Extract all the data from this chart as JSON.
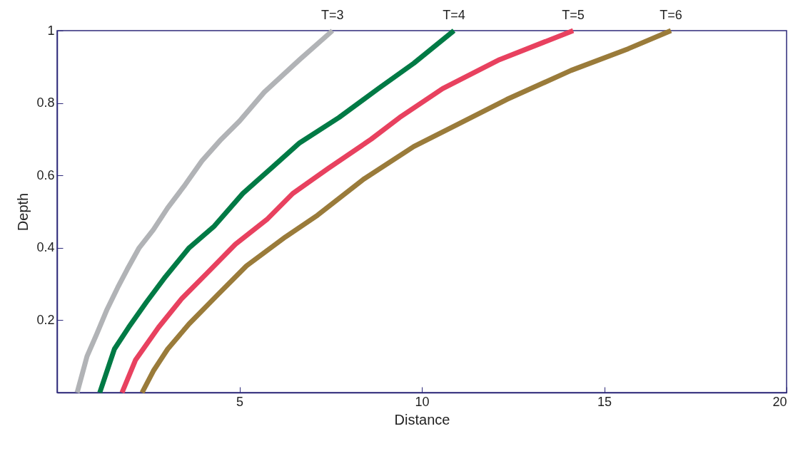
{
  "chart_data": {
    "type": "line",
    "xlabel": "Distance",
    "ylabel": "Depth",
    "xlim": [
      0,
      20
    ],
    "xticks": [
      5,
      10,
      15,
      20
    ],
    "ylim": [
      0,
      1
    ],
    "yticks": [
      0.2,
      0.4,
      0.6,
      0.8,
      {
        "value": 1,
        "label": "1"
      }
    ],
    "grid": false,
    "legend": false,
    "marker": "none",
    "line_style": "solid",
    "series": [
      {
        "name": "T=3",
        "color": "#b1b3b6",
        "x": [
          0.55,
          0.82,
          1.08,
          1.37,
          1.66,
          1.92,
          2.25,
          2.64,
          3.03,
          3.48,
          3.97,
          4.5,
          5.0,
          5.68,
          6.65,
          7.55
        ],
        "values": [
          0,
          0.1,
          0.16,
          0.23,
          0.29,
          0.34,
          0.4,
          0.45,
          0.51,
          0.57,
          0.64,
          0.7,
          0.75,
          0.83,
          0.92,
          1.0
        ]
      },
      {
        "name": "T=4",
        "color": "#007a45",
        "x": [
          1.17,
          1.57,
          1.96,
          2.45,
          2.97,
          3.62,
          4.31,
          5.09,
          5.87,
          6.65,
          7.73,
          8.81,
          9.78,
          10.88
        ],
        "values": [
          0,
          0.12,
          0.18,
          0.25,
          0.32,
          0.4,
          0.46,
          0.55,
          0.62,
          0.69,
          0.76,
          0.84,
          0.91,
          1.0
        ]
      },
      {
        "name": "T=5",
        "color": "#e8415f",
        "x": [
          1.78,
          2.15,
          2.78,
          3.42,
          4.11,
          4.89,
          5.77,
          6.46,
          7.44,
          8.61,
          9.39,
          10.57,
          12.13,
          14.15
        ],
        "values": [
          0,
          0.09,
          0.18,
          0.26,
          0.33,
          0.41,
          0.48,
          0.55,
          0.62,
          0.7,
          0.76,
          0.84,
          0.92,
          1.0
        ]
      },
      {
        "name": "T=6",
        "color": "#9a7b3a",
        "x": [
          2.33,
          2.64,
          3.03,
          3.62,
          4.4,
          5.19,
          6.26,
          7.14,
          8.41,
          9.78,
          10.96,
          12.33,
          14.09,
          15.66,
          16.83
        ],
        "values": [
          0,
          0.06,
          0.12,
          0.19,
          0.27,
          0.35,
          0.43,
          0.49,
          0.59,
          0.68,
          0.74,
          0.81,
          0.89,
          0.95,
          1.0
        ]
      }
    ]
  }
}
